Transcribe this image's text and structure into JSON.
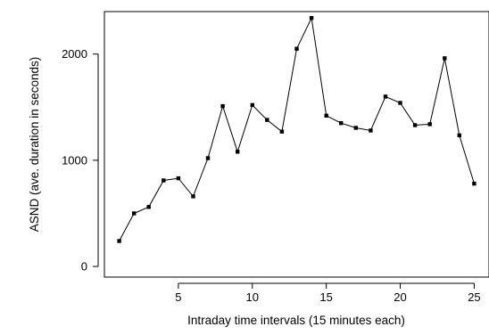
{
  "chart_data": {
    "type": "line",
    "xlabel": "Intraday time intervals (15 minutes each)",
    "ylabel": "ASND (ave. duration in seconds)",
    "xlim": [
      0,
      26
    ],
    "ylim": [
      -100,
      2400
    ],
    "xticks": [
      5,
      10,
      15,
      20,
      25
    ],
    "yticks": [
      0,
      1000,
      2000
    ],
    "grid": false,
    "marker": "square",
    "series": [
      {
        "x": [
          1,
          2,
          3,
          4,
          5,
          6,
          7,
          8,
          9,
          10,
          11,
          12,
          13,
          14,
          15,
          16,
          17,
          18,
          19,
          20,
          21,
          22,
          23,
          24,
          25
        ],
        "values": [
          240,
          500,
          560,
          810,
          830,
          660,
          1020,
          1510,
          1080,
          1520,
          1380,
          1270,
          2050,
          2340,
          1420,
          1350,
          1305,
          1280,
          1600,
          1540,
          1330,
          1340,
          1960,
          1235,
          780
        ]
      }
    ]
  }
}
